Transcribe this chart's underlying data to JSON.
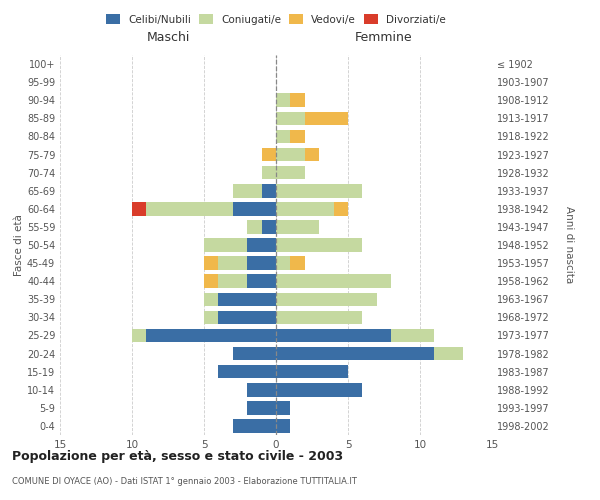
{
  "age_groups": [
    "0-4",
    "5-9",
    "10-14",
    "15-19",
    "20-24",
    "25-29",
    "30-34",
    "35-39",
    "40-44",
    "45-49",
    "50-54",
    "55-59",
    "60-64",
    "65-69",
    "70-74",
    "75-79",
    "80-84",
    "85-89",
    "90-94",
    "95-99",
    "100+"
  ],
  "birth_years": [
    "1998-2002",
    "1993-1997",
    "1988-1992",
    "1983-1987",
    "1978-1982",
    "1973-1977",
    "1968-1972",
    "1963-1967",
    "1958-1962",
    "1953-1957",
    "1948-1952",
    "1943-1947",
    "1938-1942",
    "1933-1937",
    "1928-1932",
    "1923-1927",
    "1918-1922",
    "1913-1917",
    "1908-1912",
    "1903-1907",
    "≤ 1902"
  ],
  "males": {
    "celibi": [
      3,
      2,
      2,
      4,
      3,
      9,
      4,
      4,
      2,
      2,
      2,
      1,
      3,
      1,
      0,
      0,
      0,
      0,
      0,
      0,
      0
    ],
    "coniugati": [
      0,
      0,
      0,
      0,
      0,
      1,
      1,
      1,
      2,
      2,
      3,
      1,
      6,
      2,
      1,
      0,
      0,
      0,
      0,
      0,
      0
    ],
    "vedovi": [
      0,
      0,
      0,
      0,
      0,
      0,
      0,
      0,
      1,
      1,
      0,
      0,
      0,
      0,
      0,
      1,
      0,
      0,
      0,
      0,
      0
    ],
    "divorziati": [
      0,
      0,
      0,
      0,
      0,
      0,
      0,
      0,
      0,
      0,
      0,
      0,
      1,
      0,
      0,
      0,
      0,
      0,
      0,
      0,
      0
    ]
  },
  "females": {
    "nubili": [
      1,
      1,
      6,
      5,
      11,
      8,
      0,
      0,
      0,
      0,
      0,
      0,
      0,
      0,
      0,
      0,
      0,
      0,
      0,
      0,
      0
    ],
    "coniugate": [
      0,
      0,
      0,
      0,
      2,
      3,
      6,
      7,
      8,
      1,
      6,
      3,
      4,
      6,
      2,
      2,
      1,
      2,
      1,
      0,
      0
    ],
    "vedove": [
      0,
      0,
      0,
      0,
      0,
      0,
      0,
      0,
      0,
      1,
      0,
      0,
      1,
      0,
      0,
      1,
      1,
      3,
      1,
      0,
      0
    ],
    "divorziate": [
      0,
      0,
      0,
      0,
      0,
      0,
      0,
      0,
      0,
      0,
      0,
      0,
      0,
      0,
      0,
      0,
      0,
      0,
      0,
      0,
      0
    ]
  },
  "colors": {
    "celibi_nubili": "#3a6ea5",
    "coniugati": "#c5d9a0",
    "vedovi": "#f0b84b",
    "divorziati": "#d93c2a"
  },
  "title": "Popolazione per età, sesso e stato civile - 2003",
  "subtitle": "COMUNE DI OYACE (AO) - Dati ISTAT 1° gennaio 2003 - Elaborazione TUTTITALIA.IT",
  "xlabel_left": "Maschi",
  "xlabel_right": "Femmine",
  "ylabel_left": "Fasce di età",
  "ylabel_right": "Anni di nascita",
  "xlim": 15,
  "legend_labels": [
    "Celibi/Nubili",
    "Coniugati/e",
    "Vedovi/e",
    "Divorziati/e"
  ],
  "bg_color": "#ffffff",
  "grid_color": "#cccccc"
}
